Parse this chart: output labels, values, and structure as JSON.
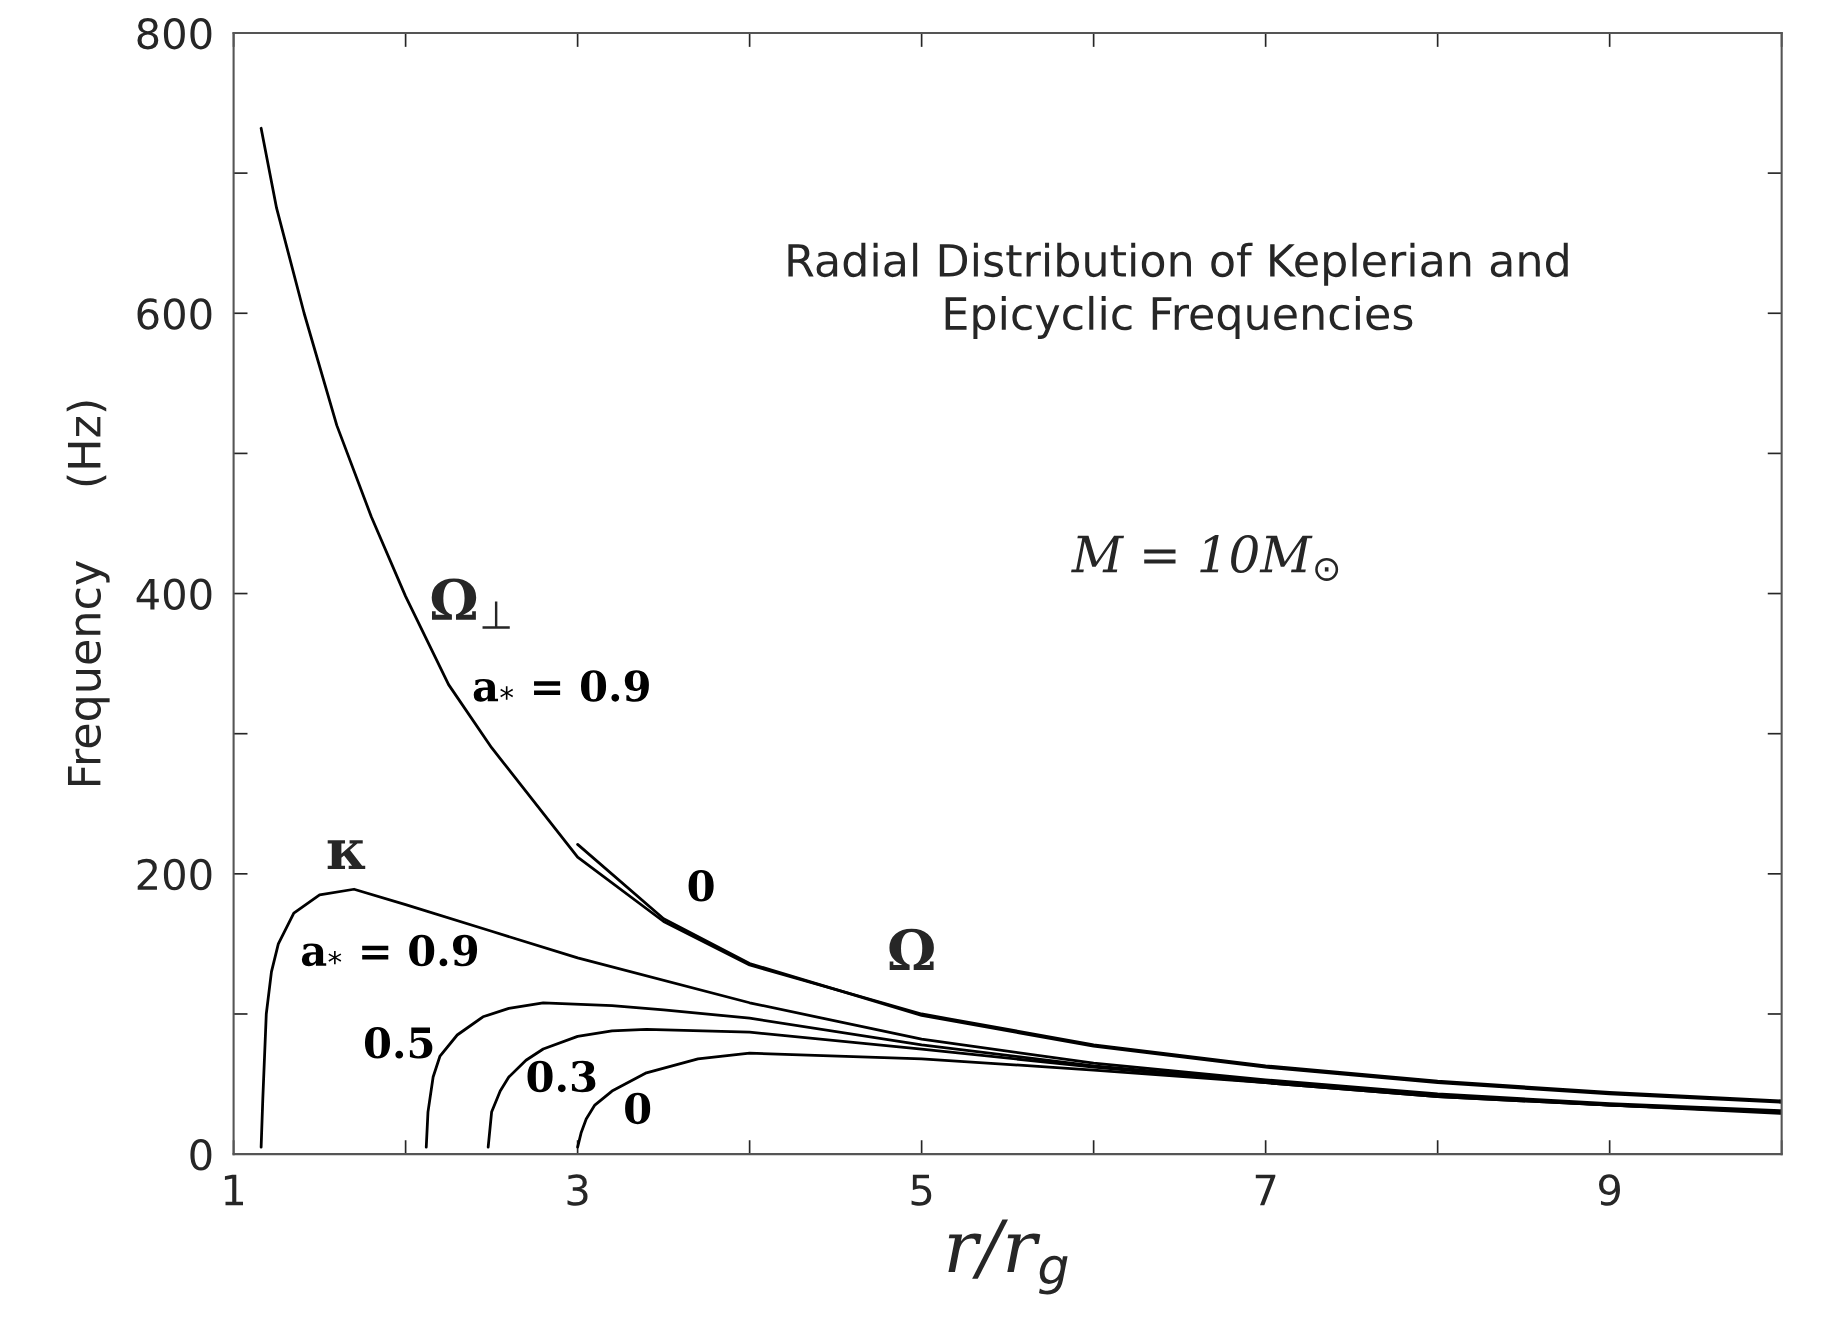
{
  "chart_data": {
    "type": "line",
    "title": "Radial Distribution of Keplerian and\nEpicyclic Frequencies",
    "xlabel": "r/r$_{g}$",
    "ylabel": "Frequency     (Hz)",
    "xlim": [
      1,
      10
    ],
    "ylim": [
      0,
      800
    ],
    "xticks": [
      1,
      {
        "value": 2,
        "label": null
      },
      3,
      {
        "value": 4,
        "label": null
      },
      5,
      {
        "value": 6,
        "label": null
      },
      7,
      {
        "value": 8,
        "label": null
      },
      9,
      {
        "value": 10,
        "label": null
      }
    ],
    "yticks": [
      0,
      {
        "value": 100,
        "label": null
      },
      200,
      {
        "value": 300,
        "label": null
      },
      400,
      {
        "value": 500,
        "label": null
      },
      600,
      {
        "value": 700,
        "label": null
      },
      800
    ],
    "grid": false,
    "legend": false,
    "marker": "none",
    "line_style": "solid",
    "series": [
      {
        "name": "a$_{*}$ = 0.9",
        "color": "#000000",
        "x": [
          1.16,
          1.25,
          1.41,
          1.6,
          1.8,
          2.0,
          2.25,
          2.5,
          3,
          3.5,
          4,
          5,
          6,
          7,
          8,
          9,
          10
        ],
        "values": [
          732,
          675,
          600,
          520,
          455,
          398,
          335,
          290,
          212,
          166,
          135,
          100,
          78,
          63,
          52,
          44,
          38
        ]
      },
      {
        "name": "0",
        "color": "#000000",
        "x": [
          3,
          3.5,
          4,
          5,
          6,
          7,
          8,
          9,
          10
        ],
        "values": [
          221,
          168,
          136,
          99,
          77,
          62,
          51,
          43,
          37
        ]
      },
      {
        "name": "a$_{*}$ = 0.9",
        "color": "#000000",
        "x": [
          1.16,
          1.17,
          1.19,
          1.22,
          1.26,
          1.35,
          1.5,
          1.7,
          2,
          2.5,
          3,
          4,
          5,
          6,
          7,
          8,
          9,
          10
        ],
        "values": [
          5,
          40,
          100,
          130,
          150,
          172,
          185,
          189,
          178,
          159,
          140,
          108,
          82,
          65,
          53,
          43,
          36,
          31
        ]
      },
      {
        "name": "0.5",
        "color": "#000000",
        "x": [
          2.12,
          2.13,
          2.16,
          2.2,
          2.3,
          2.45,
          2.6,
          2.8,
          3.2,
          3.5,
          4,
          5,
          6,
          7,
          8,
          9,
          10
        ],
        "values": [
          5,
          30,
          55,
          70,
          85,
          98,
          104,
          108,
          106,
          103,
          97,
          78,
          63,
          52,
          42,
          35,
          30
        ]
      },
      {
        "name": "0.3",
        "color": "#000000",
        "x": [
          2.48,
          2.5,
          2.55,
          2.6,
          2.7,
          2.8,
          3,
          3.2,
          3.4,
          4,
          5,
          6,
          7,
          8,
          9,
          10
        ],
        "values": [
          5,
          30,
          45,
          55,
          67,
          75,
          84,
          88,
          89,
          87,
          75,
          62,
          51,
          41,
          35,
          30
        ]
      },
      {
        "name": "0",
        "color": "#000000",
        "x": [
          3.0,
          3.02,
          3.05,
          3.1,
          3.2,
          3.4,
          3.7,
          4,
          5,
          6,
          7,
          8,
          9,
          10
        ],
        "values": [
          5,
          15,
          25,
          35,
          45,
          58,
          68,
          72,
          68,
          60,
          51,
          41,
          35,
          29
        ]
      }
    ],
    "annotations": [
      "Ω$_{⊥}$",
      "Ω",
      "κ",
      "M = 10M$_{⊙}$"
    ]
  }
}
